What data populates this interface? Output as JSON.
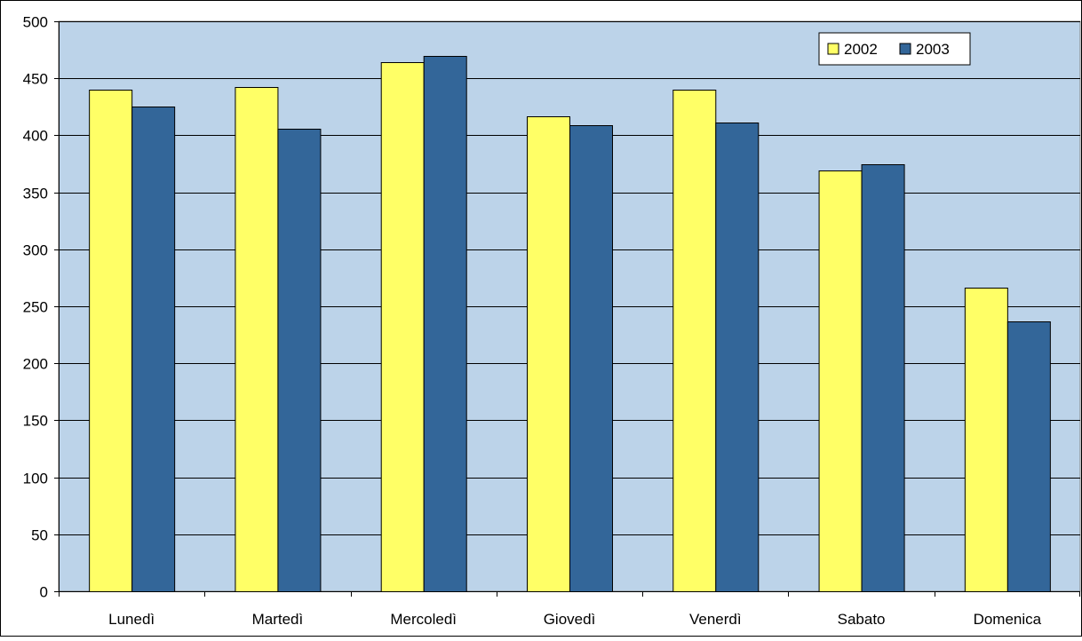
{
  "chart_data": {
    "type": "bar",
    "title": "",
    "xlabel": "",
    "ylabel": "",
    "categories": [
      "Lunedì",
      "Martedì",
      "Mercoledì",
      "Giovedì",
      "Venerdì",
      "Sabato",
      "Domenica"
    ],
    "series": [
      {
        "name": "2002",
        "values": [
          440,
          442,
          464,
          417,
          440,
          369,
          266
        ],
        "color": "#ffff66"
      },
      {
        "name": "2003",
        "values": [
          425,
          406,
          470,
          409,
          411,
          375,
          237
        ],
        "color": "#336699"
      }
    ],
    "ylim": [
      0,
      500
    ],
    "yticks": [
      0,
      50,
      100,
      150,
      200,
      250,
      300,
      350,
      400,
      450,
      500
    ],
    "grid": true,
    "legend_position": "top-right",
    "plot_background": "#bcd3e9"
  }
}
